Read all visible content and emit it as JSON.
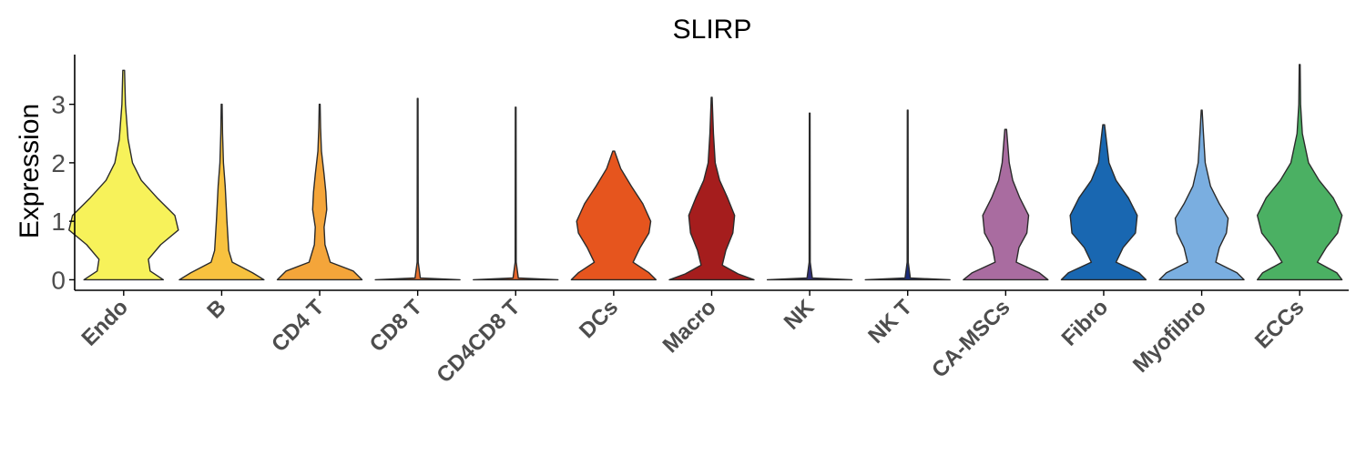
{
  "chart_data": {
    "type": "violin",
    "title": "SLIRP",
    "xlabel": "",
    "ylabel": "Expression",
    "ylim": [
      -0.18,
      3.85
    ],
    "yticks": [
      0,
      1,
      2,
      3
    ],
    "categories": [
      "Endo",
      "B",
      "CD4 T",
      "CD8 T",
      "CD4CD8 T",
      "DCs",
      "Macro",
      "NK",
      "NK T",
      "CA-MSCs",
      "Fibro",
      "Myofibro",
      "ECCs"
    ],
    "colors": [
      "#f7f25a",
      "#f8c23f",
      "#f4a53a",
      "#e8712f",
      "#e6652c",
      "#e6551e",
      "#a51d1d",
      "#2f2f7a",
      "#1b2c7a",
      "#a96ca0",
      "#1967b1",
      "#7aaee0",
      "#4bb063"
    ],
    "violins": [
      {
        "max": 3.58,
        "profile": [
          [
            0,
            0.45
          ],
          [
            0.15,
            0.3
          ],
          [
            0.35,
            0.28
          ],
          [
            0.6,
            0.42
          ],
          [
            0.85,
            0.62
          ],
          [
            1.1,
            0.58
          ],
          [
            1.4,
            0.38
          ],
          [
            1.7,
            0.2
          ],
          [
            2.0,
            0.1
          ],
          [
            2.4,
            0.05
          ],
          [
            3.0,
            0.02
          ],
          [
            3.58,
            0.01
          ]
        ]
      },
      {
        "max": 3.0,
        "profile": [
          [
            0,
            0.48
          ],
          [
            0.12,
            0.35
          ],
          [
            0.3,
            0.12
          ],
          [
            0.5,
            0.08
          ],
          [
            0.75,
            0.07
          ],
          [
            1.0,
            0.06
          ],
          [
            1.3,
            0.05
          ],
          [
            1.6,
            0.04
          ],
          [
            2.0,
            0.02
          ],
          [
            2.5,
            0.01
          ],
          [
            3.0,
            0.005
          ]
        ]
      },
      {
        "max": 3.0,
        "profile": [
          [
            0,
            0.48
          ],
          [
            0.15,
            0.38
          ],
          [
            0.3,
            0.12
          ],
          [
            0.6,
            0.06
          ],
          [
            0.9,
            0.05
          ],
          [
            1.2,
            0.08
          ],
          [
            1.5,
            0.07
          ],
          [
            1.8,
            0.05
          ],
          [
            2.2,
            0.02
          ],
          [
            2.6,
            0.01
          ],
          [
            3.0,
            0.005
          ]
        ]
      },
      {
        "max": 3.1,
        "profile": [
          [
            0,
            0.48
          ],
          [
            0.03,
            0.03
          ],
          [
            0.3,
            0.006
          ],
          [
            3.1,
            0.004
          ]
        ]
      },
      {
        "max": 2.95,
        "profile": [
          [
            0,
            0.48
          ],
          [
            0.03,
            0.03
          ],
          [
            0.3,
            0.006
          ],
          [
            2.95,
            0.004
          ]
        ]
      },
      {
        "max": 2.2,
        "profile": [
          [
            0,
            0.48
          ],
          [
            0.12,
            0.4
          ],
          [
            0.3,
            0.22
          ],
          [
            0.55,
            0.3
          ],
          [
            0.8,
            0.4
          ],
          [
            1.0,
            0.42
          ],
          [
            1.3,
            0.33
          ],
          [
            1.6,
            0.2
          ],
          [
            1.9,
            0.08
          ],
          [
            2.2,
            0.01
          ]
        ]
      },
      {
        "max": 3.12,
        "profile": [
          [
            0,
            0.48
          ],
          [
            0.1,
            0.3
          ],
          [
            0.25,
            0.12
          ],
          [
            0.5,
            0.16
          ],
          [
            0.8,
            0.24
          ],
          [
            1.1,
            0.26
          ],
          [
            1.4,
            0.18
          ],
          [
            1.7,
            0.09
          ],
          [
            2.0,
            0.04
          ],
          [
            2.5,
            0.02
          ],
          [
            3.12,
            0.005
          ]
        ]
      },
      {
        "max": 2.85,
        "profile": [
          [
            0,
            0.48
          ],
          [
            0.03,
            0.03
          ],
          [
            0.3,
            0.006
          ],
          [
            2.85,
            0.004
          ]
        ]
      },
      {
        "max": 2.9,
        "profile": [
          [
            0,
            0.48
          ],
          [
            0.03,
            0.03
          ],
          [
            0.3,
            0.006
          ],
          [
            2.9,
            0.004
          ]
        ]
      },
      {
        "max": 2.57,
        "profile": [
          [
            0,
            0.48
          ],
          [
            0.12,
            0.38
          ],
          [
            0.3,
            0.12
          ],
          [
            0.55,
            0.15
          ],
          [
            0.8,
            0.24
          ],
          [
            1.1,
            0.26
          ],
          [
            1.4,
            0.16
          ],
          [
            1.7,
            0.08
          ],
          [
            2.0,
            0.04
          ],
          [
            2.57,
            0.01
          ]
        ]
      },
      {
        "max": 2.65,
        "profile": [
          [
            0,
            0.48
          ],
          [
            0.12,
            0.4
          ],
          [
            0.3,
            0.14
          ],
          [
            0.55,
            0.22
          ],
          [
            0.8,
            0.36
          ],
          [
            1.1,
            0.38
          ],
          [
            1.4,
            0.28
          ],
          [
            1.7,
            0.14
          ],
          [
            2.0,
            0.06
          ],
          [
            2.65,
            0.01
          ]
        ]
      },
      {
        "max": 2.9,
        "profile": [
          [
            0,
            0.48
          ],
          [
            0.12,
            0.4
          ],
          [
            0.3,
            0.16
          ],
          [
            0.55,
            0.2
          ],
          [
            0.8,
            0.28
          ],
          [
            1.05,
            0.3
          ],
          [
            1.3,
            0.2
          ],
          [
            1.6,
            0.1
          ],
          [
            2.0,
            0.04
          ],
          [
            2.5,
            0.02
          ],
          [
            2.9,
            0.005
          ]
        ]
      },
      {
        "max": 3.68,
        "profile": [
          [
            0,
            0.48
          ],
          [
            0.12,
            0.42
          ],
          [
            0.3,
            0.2
          ],
          [
            0.55,
            0.3
          ],
          [
            0.8,
            0.43
          ],
          [
            1.1,
            0.48
          ],
          [
            1.4,
            0.38
          ],
          [
            1.7,
            0.22
          ],
          [
            2.0,
            0.1
          ],
          [
            2.5,
            0.03
          ],
          [
            3.0,
            0.01
          ],
          [
            3.68,
            0.005
          ]
        ]
      }
    ]
  }
}
